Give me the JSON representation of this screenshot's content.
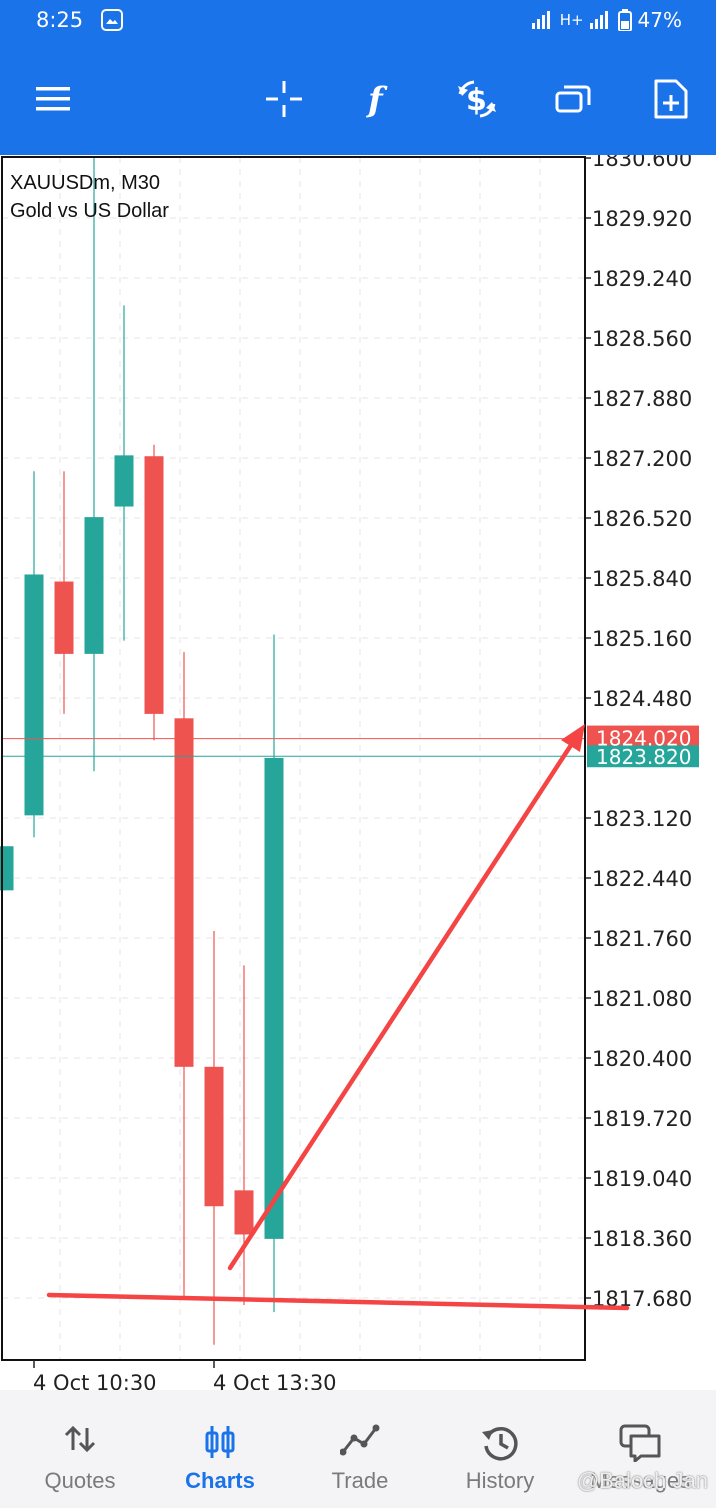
{
  "status_bar": {
    "time": "8:25",
    "network": "H+",
    "battery": "47%"
  },
  "toolbar": {
    "icons": [
      "menu-icon",
      "crosshair-icon",
      "indicators-icon",
      "trade-icon",
      "window-icon",
      "new-order-icon"
    ]
  },
  "chart": {
    "symbol_line": "XAUUSDm, M30",
    "description": "Gold vs US Dollar",
    "bid_label": "1824.020",
    "ask_label": "1823.820",
    "colors": {
      "bull": "#26a69a",
      "bear": "#ef5350",
      "annotation": "#f44444"
    }
  },
  "chart_data": {
    "type": "candlestick",
    "symbol": "XAUUSDm",
    "timeframe": "M30",
    "y_ticks": [
      "1830.600",
      "1829.920",
      "1829.240",
      "1828.560",
      "1827.880",
      "1827.200",
      "1826.520",
      "1825.840",
      "1825.160",
      "1824.480",
      "1823.120",
      "1822.440",
      "1821.760",
      "1821.080",
      "1820.400",
      "1819.720",
      "1819.040",
      "1818.360",
      "1817.680"
    ],
    "ylim": [
      1816.4,
      1830.6
    ],
    "x_ticks": [
      {
        "label": "4 Oct 10:30",
        "candle": 1
      },
      {
        "label": "4 Oct 13:30",
        "candle": 7
      }
    ],
    "candles": [
      {
        "o": 1822.3,
        "h": 1822.8,
        "l": 1822.3,
        "c": 1822.8
      },
      {
        "o": 1823.15,
        "h": 1827.05,
        "l": 1822.9,
        "c": 1825.88
      },
      {
        "o": 1825.8,
        "h": 1827.05,
        "l": 1824.3,
        "c": 1824.98
      },
      {
        "o": 1824.98,
        "h": 1830.6,
        "l": 1823.65,
        "c": 1826.53
      },
      {
        "o": 1826.65,
        "h": 1828.93,
        "l": 1825.13,
        "c": 1827.23
      },
      {
        "o": 1827.22,
        "h": 1827.35,
        "l": 1824.0,
        "c": 1824.3
      },
      {
        "o": 1824.25,
        "h": 1825.0,
        "l": 1817.7,
        "c": 1820.3
      },
      {
        "o": 1820.3,
        "h": 1821.84,
        "l": 1817.15,
        "c": 1818.72
      },
      {
        "o": 1818.9,
        "h": 1821.45,
        "l": 1817.6,
        "c": 1818.4
      },
      {
        "o": 1818.35,
        "h": 1825.2,
        "l": 1817.52,
        "c": 1823.8
      }
    ],
    "bid": 1824.02,
    "ask": 1823.82
  },
  "bottom_nav": {
    "items": [
      {
        "label": "Quotes",
        "icon": "quotes-icon"
      },
      {
        "label": "Charts",
        "icon": "charts-icon"
      },
      {
        "label": "Trade",
        "icon": "trade-nav-icon"
      },
      {
        "label": "History",
        "icon": "history-icon"
      },
      {
        "label": "Messages",
        "icon": "messages-icon"
      }
    ],
    "watermark": "@Baloch Jan"
  }
}
